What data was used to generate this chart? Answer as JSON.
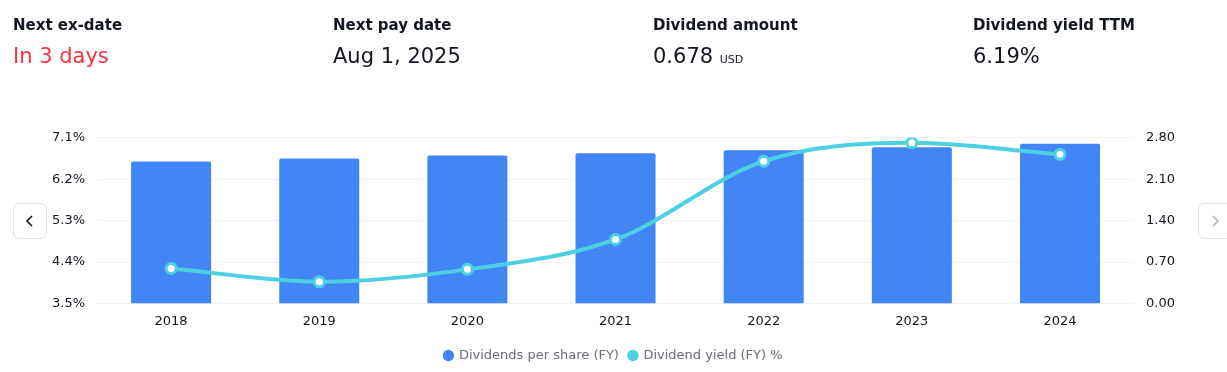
{
  "chart_data": [
    {
      "type": "other",
      "annotations": [
        "Next ex-date",
        "In 3 days",
        "Next pay date",
        "Aug 1, 2025",
        "Dividend amount",
        "0.678 $_{USD}$",
        "Dividend yield TTM",
        "6.19%"
      ]
    },
    {
      "type": "bar",
      "categories": [
        "2018",
        "2019",
        "2020",
        "2021",
        "2022",
        "2023",
        "2024"
      ],
      "series": [
        {
          "name": "Dividends per share (FY)",
          "type": "bar",
          "axis": "y2",
          "color": "#4285f4",
          "values": [
            2.4,
            2.45,
            2.5,
            2.54,
            2.59,
            2.64,
            2.7
          ]
        },
        {
          "name": "Dividend yield (FY) %",
          "type": "line",
          "axis": "y",
          "color": "#4dd0e1",
          "marker": "circle",
          "values": [
            4.26,
            3.97,
            4.24,
            4.89,
            6.59,
            6.99,
            6.74
          ]
        }
      ],
      "ylim": [
        3.5,
        7.1
      ],
      "yticks": [
        {
          "value": 3.5,
          "label": "3.5%"
        },
        {
          "value": 4.4,
          "label": "4.4%"
        },
        {
          "value": 5.3,
          "label": "5.3%"
        },
        {
          "value": 6.2,
          "label": "6.2%"
        },
        {
          "value": 7.1,
          "label": "7.1%"
        }
      ],
      "y2lim": [
        0,
        2.8
      ],
      "y2ticks": [
        {
          "value": 0,
          "label": "0.00"
        },
        {
          "value": 0.7,
          "label": "0.70"
        },
        {
          "value": 1.4,
          "label": "1.40"
        },
        {
          "value": 2.1,
          "label": "2.10"
        },
        {
          "value": 2.8,
          "label": "2.80"
        }
      ],
      "grid": "y",
      "legend": "bottom"
    }
  ]
}
